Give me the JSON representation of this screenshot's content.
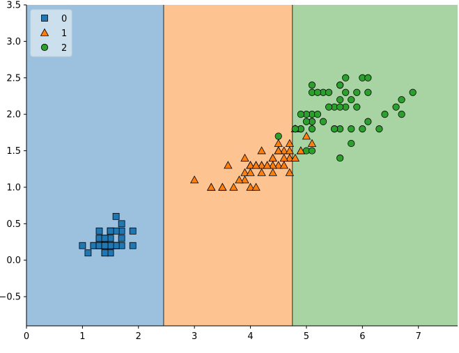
{
  "chart_data": {
    "type": "scatter",
    "title": "",
    "xlabel": "",
    "ylabel": "",
    "xlim": [
      0,
      7.7
    ],
    "ylim": [
      -0.9,
      3.5
    ],
    "xticks": [
      0,
      1,
      2,
      3,
      4,
      5,
      6,
      7
    ],
    "xtick_labels": [
      "0",
      "1",
      "2",
      "3",
      "4",
      "5",
      "6",
      "7"
    ],
    "yticks": [
      -0.5,
      0.0,
      0.5,
      1.0,
      1.5,
      2.0,
      2.5,
      3.0,
      3.5
    ],
    "ytick_labels": [
      "−0.5",
      "0.0",
      "0.5",
      "1.0",
      "1.5",
      "2.0",
      "2.5",
      "3.0",
      "3.5"
    ],
    "grid": false,
    "legend_position": "top-left",
    "decision_regions": [
      {
        "class": "0",
        "x_range": [
          0,
          2.45
        ],
        "color": "#9cc1df"
      },
      {
        "class": "1",
        "x_range": [
          2.45,
          4.75
        ],
        "color": "#fdc491"
      },
      {
        "class": "2",
        "x_range": [
          4.75,
          7.7
        ],
        "color": "#a8d4a3"
      }
    ],
    "series": [
      {
        "name": "0",
        "marker": "square",
        "color": "#1f77b4",
        "points": [
          [
            1.4,
            0.2
          ],
          [
            1.4,
            0.2
          ],
          [
            1.3,
            0.2
          ],
          [
            1.5,
            0.2
          ],
          [
            1.4,
            0.2
          ],
          [
            1.7,
            0.4
          ],
          [
            1.4,
            0.3
          ],
          [
            1.5,
            0.2
          ],
          [
            1.4,
            0.2
          ],
          [
            1.5,
            0.1
          ],
          [
            1.5,
            0.2
          ],
          [
            1.6,
            0.2
          ],
          [
            1.4,
            0.1
          ],
          [
            1.1,
            0.1
          ],
          [
            1.2,
            0.2
          ],
          [
            1.5,
            0.4
          ],
          [
            1.3,
            0.4
          ],
          [
            1.4,
            0.3
          ],
          [
            1.7,
            0.3
          ],
          [
            1.5,
            0.3
          ],
          [
            1.7,
            0.2
          ],
          [
            1.5,
            0.4
          ],
          [
            1.0,
            0.2
          ],
          [
            1.7,
            0.5
          ],
          [
            1.9,
            0.2
          ],
          [
            1.6,
            0.2
          ],
          [
            1.6,
            0.4
          ],
          [
            1.5,
            0.2
          ],
          [
            1.4,
            0.2
          ],
          [
            1.6,
            0.2
          ],
          [
            1.6,
            0.2
          ],
          [
            1.5,
            0.4
          ],
          [
            1.5,
            0.1
          ],
          [
            1.4,
            0.2
          ],
          [
            1.5,
            0.2
          ],
          [
            1.2,
            0.2
          ],
          [
            1.3,
            0.2
          ],
          [
            1.4,
            0.1
          ],
          [
            1.3,
            0.2
          ],
          [
            1.5,
            0.2
          ],
          [
            1.3,
            0.3
          ],
          [
            1.3,
            0.3
          ],
          [
            1.3,
            0.2
          ],
          [
            1.6,
            0.6
          ],
          [
            1.9,
            0.4
          ],
          [
            1.4,
            0.3
          ],
          [
            1.6,
            0.2
          ],
          [
            1.4,
            0.2
          ],
          [
            1.5,
            0.2
          ],
          [
            1.4,
            0.2
          ]
        ]
      },
      {
        "name": "1",
        "marker": "triangle",
        "color": "#ff7f0e",
        "points": [
          [
            4.7,
            1.4
          ],
          [
            4.5,
            1.5
          ],
          [
            4.9,
            1.5
          ],
          [
            4.0,
            1.3
          ],
          [
            4.6,
            1.5
          ],
          [
            4.5,
            1.3
          ],
          [
            4.7,
            1.6
          ],
          [
            3.3,
            1.0
          ],
          [
            4.6,
            1.3
          ],
          [
            3.9,
            1.4
          ],
          [
            3.5,
            1.0
          ],
          [
            4.2,
            1.5
          ],
          [
            4.0,
            1.0
          ],
          [
            4.7,
            1.4
          ],
          [
            3.6,
            1.3
          ],
          [
            4.4,
            1.4
          ],
          [
            4.5,
            1.5
          ],
          [
            4.1,
            1.0
          ],
          [
            4.5,
            1.5
          ],
          [
            3.9,
            1.1
          ],
          [
            4.8,
            1.8
          ],
          [
            4.0,
            1.3
          ],
          [
            4.9,
            1.5
          ],
          [
            4.7,
            1.2
          ],
          [
            4.3,
            1.3
          ],
          [
            4.4,
            1.4
          ],
          [
            4.8,
            1.4
          ],
          [
            5.0,
            1.7
          ],
          [
            4.5,
            1.5
          ],
          [
            3.5,
            1.0
          ],
          [
            3.8,
            1.1
          ],
          [
            3.7,
            1.0
          ],
          [
            3.9,
            1.2
          ],
          [
            5.1,
            1.6
          ],
          [
            4.5,
            1.5
          ],
          [
            4.5,
            1.6
          ],
          [
            4.7,
            1.5
          ],
          [
            4.4,
            1.3
          ],
          [
            4.1,
            1.3
          ],
          [
            4.0,
            1.3
          ],
          [
            4.4,
            1.2
          ],
          [
            4.6,
            1.4
          ],
          [
            4.0,
            1.2
          ],
          [
            3.3,
            1.0
          ],
          [
            4.2,
            1.3
          ],
          [
            4.2,
            1.2
          ],
          [
            4.2,
            1.3
          ],
          [
            4.3,
            1.3
          ],
          [
            3.0,
            1.1
          ],
          [
            4.1,
            1.3
          ]
        ]
      },
      {
        "name": "2",
        "marker": "circle",
        "color": "#2ca02c",
        "points": [
          [
            6.0,
            2.5
          ],
          [
            5.1,
            1.9
          ],
          [
            5.9,
            2.1
          ],
          [
            5.6,
            1.8
          ],
          [
            5.8,
            2.2
          ],
          [
            6.6,
            2.1
          ],
          [
            4.5,
            1.7
          ],
          [
            6.3,
            1.8
          ],
          [
            5.8,
            1.8
          ],
          [
            6.1,
            2.5
          ],
          [
            5.1,
            2.0
          ],
          [
            5.3,
            1.9
          ],
          [
            5.5,
            2.1
          ],
          [
            5.0,
            2.0
          ],
          [
            5.1,
            2.4
          ],
          [
            5.3,
            2.3
          ],
          [
            5.5,
            1.8
          ],
          [
            6.7,
            2.2
          ],
          [
            6.9,
            2.3
          ],
          [
            5.0,
            1.5
          ],
          [
            5.7,
            2.3
          ],
          [
            4.9,
            2.0
          ],
          [
            6.7,
            2.0
          ],
          [
            4.9,
            1.8
          ],
          [
            5.7,
            2.1
          ],
          [
            6.0,
            1.8
          ],
          [
            4.8,
            1.8
          ],
          [
            4.9,
            1.8
          ],
          [
            5.6,
            2.1
          ],
          [
            5.8,
            1.6
          ],
          [
            6.1,
            1.9
          ],
          [
            6.4,
            2.0
          ],
          [
            5.6,
            2.2
          ],
          [
            5.1,
            1.5
          ],
          [
            5.6,
            1.4
          ],
          [
            6.1,
            2.3
          ],
          [
            5.6,
            2.4
          ],
          [
            5.5,
            1.8
          ],
          [
            4.8,
            1.8
          ],
          [
            5.4,
            2.1
          ],
          [
            5.6,
            2.4
          ],
          [
            5.1,
            2.3
          ],
          [
            5.1,
            1.9
          ],
          [
            5.9,
            2.3
          ],
          [
            5.7,
            2.5
          ],
          [
            5.2,
            2.3
          ],
          [
            5.0,
            1.9
          ],
          [
            5.2,
            2.0
          ],
          [
            5.4,
            2.3
          ],
          [
            5.1,
            1.8
          ]
        ]
      }
    ]
  }
}
